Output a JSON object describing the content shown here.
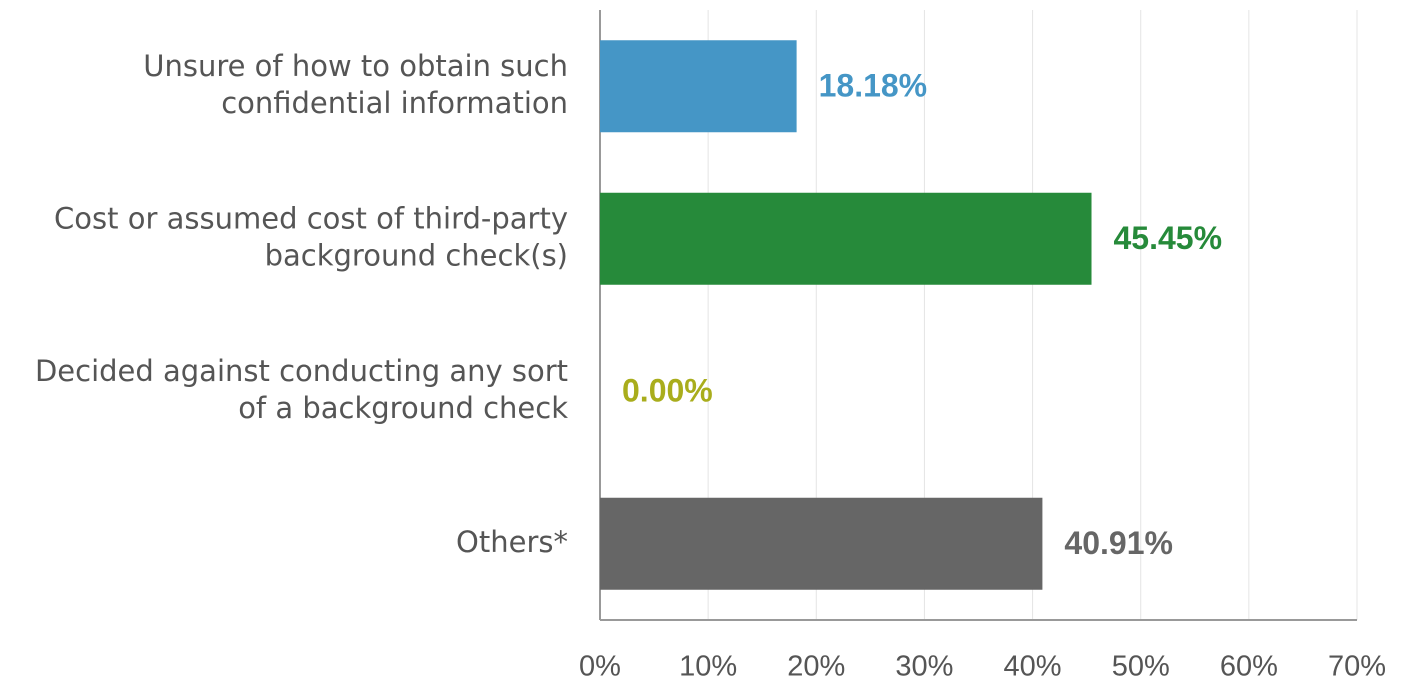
{
  "chart_data": {
    "type": "barh",
    "categories": [
      "Unsure of how to obtain such\nconfidential information",
      "Cost or assumed cost of third-party\nbackground check(s)",
      "Decided against conducting any sort\nof a background check",
      "Others*"
    ],
    "values": [
      18.18,
      45.45,
      0,
      40.91
    ],
    "value_labels": [
      "18.18%",
      "45.45%",
      "0.00%",
      "40.91%"
    ],
    "colors": [
      "#4596c6",
      "#268a3a",
      "#a9ad1c",
      "#666666"
    ],
    "xlim": [
      0,
      70
    ],
    "xticks": [
      {
        "value": 0,
        "label": "0%"
      },
      {
        "value": 10,
        "label": "10%"
      },
      {
        "value": 20,
        "label": "20%"
      },
      {
        "value": 30,
        "label": "30%"
      },
      {
        "value": 40,
        "label": "40%"
      },
      {
        "value": 50,
        "label": "50%"
      },
      {
        "value": 60,
        "label": "60%"
      },
      {
        "value": 70,
        "label": "70%"
      }
    ],
    "grid": true
  }
}
